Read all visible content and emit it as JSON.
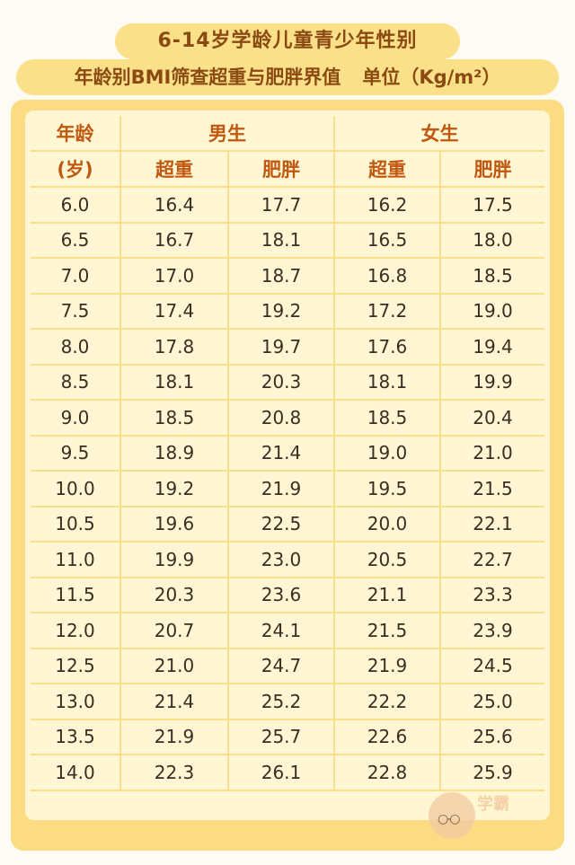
{
  "banner": {
    "line1": "6-14岁学龄儿童青少年性别",
    "line2": "年龄别BMI筛查超重与肥胖界值",
    "unit": "单位（Kg/m²）"
  },
  "table": {
    "age_header_1": "年龄",
    "age_header_2": "(岁)",
    "male": "男生",
    "female": "女生",
    "overweight": "超重",
    "obese": "肥胖",
    "rows": [
      [
        "6.0",
        "16.4",
        "17.7",
        "16.2",
        "17.5"
      ],
      [
        "6.5",
        "16.7",
        "18.1",
        "16.5",
        "18.0"
      ],
      [
        "7.0",
        "17.0",
        "18.7",
        "16.8",
        "18.5"
      ],
      [
        "7.5",
        "17.4",
        "19.2",
        "17.2",
        "19.0"
      ],
      [
        "8.0",
        "17.8",
        "19.7",
        "17.6",
        "19.4"
      ],
      [
        "8.5",
        "18.1",
        "20.3",
        "18.1",
        "19.9"
      ],
      [
        "9.0",
        "18.5",
        "20.8",
        "18.5",
        "20.4"
      ],
      [
        "9.5",
        "18.9",
        "21.4",
        "19.0",
        "21.0"
      ],
      [
        "10.0",
        "19.2",
        "21.9",
        "19.5",
        "21.5"
      ],
      [
        "10.5",
        "19.6",
        "22.5",
        "20.0",
        "22.1"
      ],
      [
        "11.0",
        "19.9",
        "23.0",
        "20.5",
        "22.7"
      ],
      [
        "11.5",
        "20.3",
        "23.6",
        "21.1",
        "23.3"
      ],
      [
        "12.0",
        "20.7",
        "24.1",
        "21.5",
        "23.9"
      ],
      [
        "12.5",
        "21.0",
        "24.7",
        "21.9",
        "24.5"
      ],
      [
        "13.0",
        "21.4",
        "25.2",
        "22.2",
        "25.0"
      ],
      [
        "13.5",
        "21.9",
        "25.7",
        "22.6",
        "25.6"
      ],
      [
        "14.0",
        "22.3",
        "26.1",
        "22.8",
        "25.9"
      ]
    ]
  },
  "watermark": {
    "icon": "girl-with-glasses-icon",
    "text": "学霸"
  },
  "colors": {
    "banner_bg": "#fbe08a",
    "banner_text": "#8a4a12",
    "card_bg": "#fbdc83",
    "table_bg": "#fff6d4",
    "header_text": "#c0580f"
  }
}
